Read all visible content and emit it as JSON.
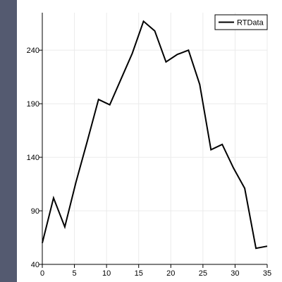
{
  "colors": {
    "left_strip": "#545a70",
    "background": "#ffffff",
    "grid": "#ebebeb",
    "axis": "#000000",
    "line": "#000000"
  },
  "chart_data": {
    "type": "line",
    "title": "",
    "xlabel": "",
    "ylabel": "",
    "xlim": [
      0,
      35
    ],
    "ylim": [
      40,
      275
    ],
    "grid": true,
    "legend_position": "top-right",
    "x_ticks": [
      0,
      5,
      10,
      15,
      20,
      25,
      30,
      35
    ],
    "y_ticks": [
      40,
      90,
      140,
      190,
      240
    ],
    "series": [
      {
        "name": "RTData",
        "color": "#000000",
        "x": [
          0,
          1.75,
          3.5,
          5.25,
          7.0,
          8.75,
          10.5,
          12.25,
          14.0,
          15.75,
          17.5,
          19.25,
          21.0,
          22.75,
          24.5,
          26.25,
          28.0,
          29.75,
          31.5,
          33.25,
          35.0
        ],
        "y": [
          60,
          102,
          75,
          117,
          155,
          194,
          189,
          213,
          237,
          267,
          258,
          229,
          236,
          240,
          208,
          147,
          152,
          130,
          111,
          55,
          57
        ]
      }
    ]
  }
}
